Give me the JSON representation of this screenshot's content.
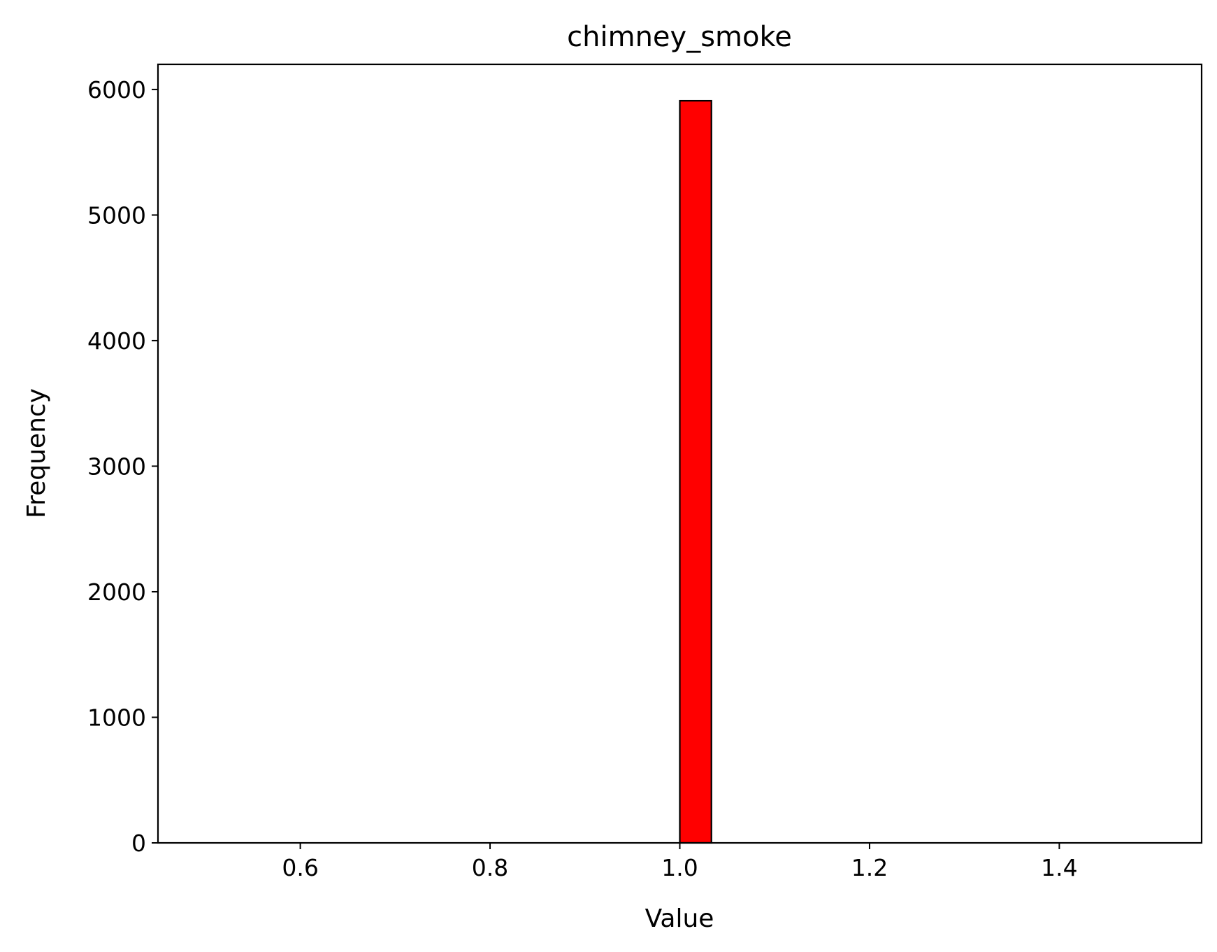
{
  "chart_data": {
    "type": "bar",
    "title": "chimney_smoke",
    "xlabel": "Value",
    "ylabel": "Frequency",
    "xlim": [
      0.45,
      1.55
    ],
    "ylim": [
      0,
      6200
    ],
    "xticks": [
      {
        "value": 0.6,
        "label": "0.6"
      },
      {
        "value": 0.8,
        "label": "0.8"
      },
      {
        "value": 1.0,
        "label": "1.0"
      },
      {
        "value": 1.2,
        "label": "1.2"
      },
      {
        "value": 1.4,
        "label": "1.4"
      }
    ],
    "yticks": [
      {
        "value": 0,
        "label": "0"
      },
      {
        "value": 1000,
        "label": "1000"
      },
      {
        "value": 2000,
        "label": "2000"
      },
      {
        "value": 3000,
        "label": "3000"
      },
      {
        "value": 4000,
        "label": "4000"
      },
      {
        "value": 5000,
        "label": "5000"
      },
      {
        "value": 6000,
        "label": "6000"
      }
    ],
    "bins": {
      "start": 0.5,
      "end": 1.5,
      "count": 30,
      "frequencies": [
        0,
        0,
        0,
        0,
        0,
        0,
        0,
        0,
        0,
        0,
        0,
        0,
        0,
        0,
        0,
        5910,
        0,
        0,
        0,
        0,
        0,
        0,
        0,
        0,
        0,
        0,
        0,
        0,
        0,
        0
      ]
    },
    "grid": false,
    "colors": {
      "bar_fill": "#ff0000",
      "bar_edge": "#000000"
    }
  }
}
